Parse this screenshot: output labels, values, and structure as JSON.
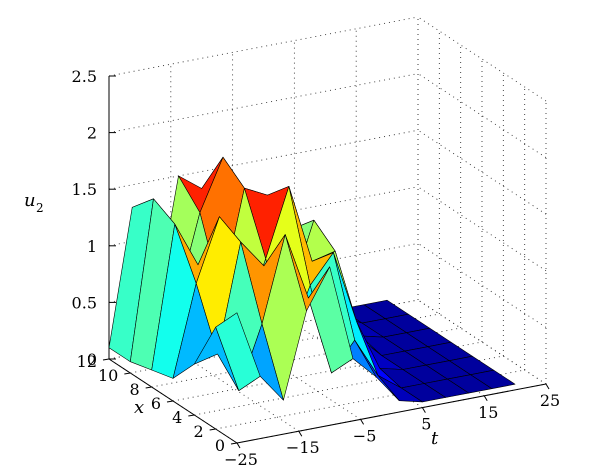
{
  "chart_data": {
    "type": "surface",
    "title": "",
    "xlabel": "t",
    "ylabel": "x",
    "zlabel": "u",
    "zlabel_subscript": "2",
    "t_range": [
      -25,
      25
    ],
    "x_range": [
      0,
      12
    ],
    "z_range": [
      0,
      2.5
    ],
    "t_ticks": [
      "−25",
      "−15",
      "−5",
      "5",
      "15",
      "25"
    ],
    "x_ticks": [
      "0",
      "2",
      "4",
      "6",
      "8",
      "10",
      "12"
    ],
    "z_ticks": [
      "0",
      "0.5",
      "1",
      "1.5",
      "2",
      "2.5"
    ],
    "grid": true,
    "colormap": "jet",
    "surface": {
      "t": [
        -25,
        -21.25,
        -17.5,
        -13.75,
        -10,
        -6.25,
        -2.5,
        1.25,
        5,
        8.75,
        12.5,
        16.25,
        20
      ],
      "x": [
        0,
        2,
        4,
        6,
        8,
        10,
        12
      ],
      "z": [
        [
          1.15,
          0.55,
          0.3,
          1.05,
          1.4,
          0.55,
          0.35,
          0.1,
          0.05,
          0.05,
          0.05,
          0.05,
          0.05
        ],
        [
          0.9,
          0.3,
          0.85,
          1.6,
          1.0,
          0.3,
          0.55,
          0.2,
          0.05,
          0.05,
          0.05,
          0.05,
          0.05
        ],
        [
          0.45,
          0.5,
          1.45,
          1.2,
          0.45,
          0.95,
          1.2,
          0.55,
          0.1,
          0.05,
          0.05,
          0.05,
          0.05
        ],
        [
          0.2,
          1.0,
          1.55,
          0.55,
          1.1,
          1.7,
          1.0,
          1.05,
          0.25,
          0.05,
          0.05,
          0.05,
          0.05
        ],
        [
          0.15,
          1.4,
          1.0,
          0.7,
          1.6,
          1.5,
          0.6,
          1.2,
          0.7,
          0.1,
          0.05,
          0.05,
          0.05
        ],
        [
          0.1,
          1.5,
          0.55,
          1.3,
          1.75,
          0.9,
          0.75,
          1.0,
          0.85,
          0.15,
          0.05,
          0.05,
          0.05
        ],
        [
          0.1,
          1.3,
          0.4,
          1.5,
          1.35,
          0.55,
          1.1,
          0.6,
          0.7,
          0.2,
          0.05,
          0.05,
          0.05
        ]
      ]
    }
  }
}
